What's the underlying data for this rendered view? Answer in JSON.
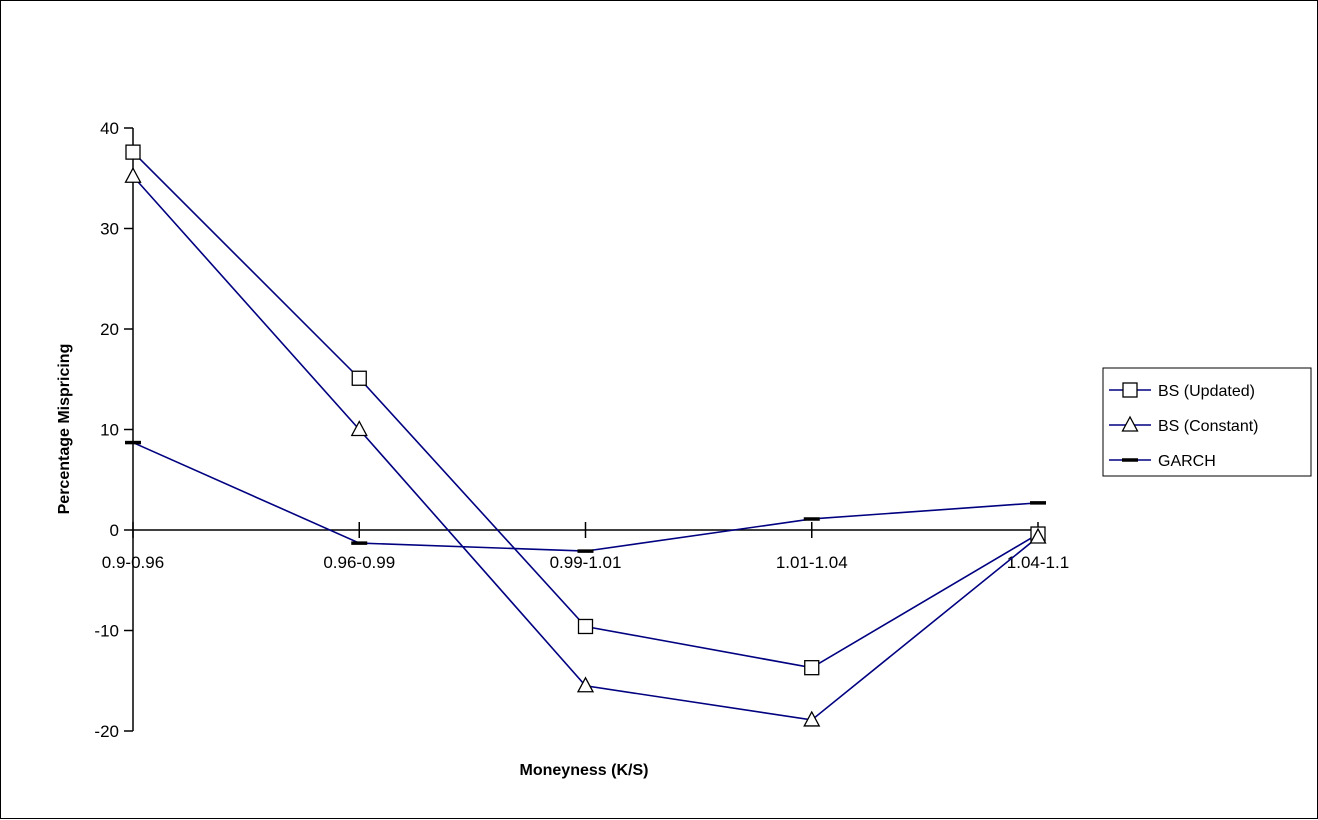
{
  "chart_data": {
    "type": "line",
    "title": "",
    "xlabel": "Moneyness (K/S)",
    "ylabel": "Percentage Mispricing",
    "categories": [
      "0.9-0.96",
      "0.96-0.99",
      "0.99-1.01",
      "1.01-1.04",
      "1.04-1.1"
    ],
    "y_ticks": [
      -20,
      -10,
      0,
      10,
      20,
      30,
      40
    ],
    "ylim": [
      -20,
      40
    ],
    "grid": false,
    "legend_position": "right",
    "series": [
      {
        "name": "BS (Updated)",
        "marker": "square",
        "color": "#000080",
        "values": [
          37.6,
          15.1,
          -9.6,
          -13.7,
          -0.4
        ]
      },
      {
        "name": "BS (Constant)",
        "marker": "triangle",
        "color": "#000080",
        "values": [
          35.2,
          10.0,
          -15.5,
          -18.9,
          -0.7
        ]
      },
      {
        "name": "GARCH",
        "marker": "dash",
        "color": "#000080",
        "values": [
          8.7,
          -1.3,
          -2.1,
          1.1,
          2.7
        ]
      }
    ]
  }
}
